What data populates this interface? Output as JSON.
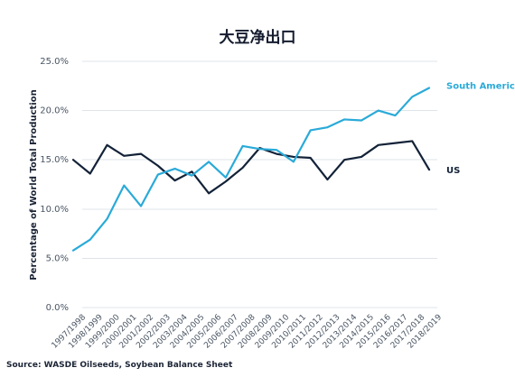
{
  "chart_data": {
    "type": "line",
    "title": "大豆净出口",
    "xlabel": "",
    "ylabel": "Percentage of World Total Production",
    "categories": [
      "1997/1998",
      "1998/1999",
      "1999/2000",
      "2000/2001",
      "2001/2002",
      "2002/2003",
      "2003/2004",
      "2004/2005",
      "2005/2006",
      "2006/2007",
      "2007/2008",
      "2008/2009",
      "2009/2010",
      "2010/2011",
      "2011/2012",
      "2012/2013",
      "2013/2014",
      "2014/2015",
      "2015/2016",
      "2016/2017",
      "2017/2018",
      "2018/2019"
    ],
    "ylim": [
      0,
      25
    ],
    "yticks": [
      "0.0%",
      "5.0%",
      "10.0%",
      "15.0%",
      "20.0%",
      "25.0%"
    ],
    "grid": true,
    "series": [
      {
        "name": "US",
        "color": "#132238",
        "values": [
          15.0,
          13.6,
          16.5,
          15.4,
          15.6,
          14.4,
          12.9,
          13.8,
          11.6,
          12.8,
          14.2,
          16.2,
          15.6,
          15.3,
          15.2,
          13.0,
          15.0,
          15.3,
          16.5,
          16.7,
          16.9,
          14.0
        ]
      },
      {
        "name": "South America",
        "color": "#2aaad8",
        "values": [
          5.8,
          6.9,
          9.0,
          12.4,
          10.3,
          13.5,
          14.1,
          13.4,
          14.8,
          13.2,
          16.4,
          16.1,
          16.0,
          14.8,
          18.0,
          18.3,
          19.1,
          19.0,
          20.0,
          19.5,
          21.4,
          22.3
        ]
      }
    ],
    "source": "Source: WASDE Oilseeds, Soybean Balance Sheet"
  }
}
